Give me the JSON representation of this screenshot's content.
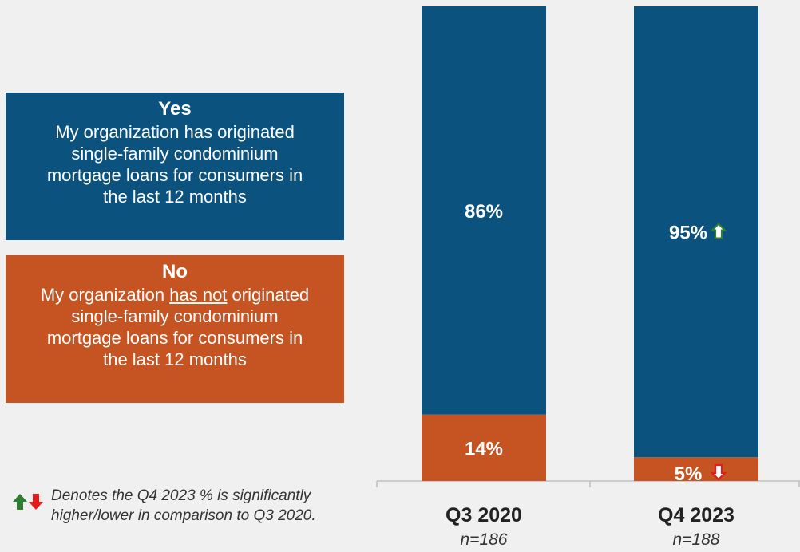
{
  "legend": {
    "yes": {
      "title": "Yes",
      "line1": "My organization has originated",
      "line2": "single-family condominium",
      "line3": "mortgage loans for consumers in",
      "line4": "the last 12 months"
    },
    "no": {
      "title": "No",
      "line1_pre": "My organization ",
      "line1_underline": "has not",
      "line1_post": " originated",
      "line2": "single-family condominium",
      "line3": "mortgage loans for consumers in",
      "line4": "the last 12 months"
    }
  },
  "note": {
    "line1": "Denotes the Q4 2023 % is significantly",
    "line2": "higher/lower in comparison to Q3 2020."
  },
  "colors": {
    "yes": "#0b527e",
    "no": "#c55422",
    "up_arrow": "#2e7d32",
    "down_arrow": "#e31b1b",
    "axis": "#bfbfbf"
  },
  "chart_data": {
    "type": "bar",
    "stacked": true,
    "categories": [
      "Q3 2020",
      "Q4 2023"
    ],
    "sample_sizes": [
      "n=186",
      "n=188"
    ],
    "series": [
      {
        "name": "Yes",
        "values": [
          86,
          95
        ],
        "labels": [
          "86%",
          "95%"
        ],
        "color": "#0b527e"
      },
      {
        "name": "No",
        "values": [
          14,
          5
        ],
        "labels": [
          "14%",
          "5%"
        ],
        "color": "#c55422"
      }
    ],
    "significance": [
      null,
      {
        "Yes": "up",
        "No": "down"
      }
    ],
    "ylim": [
      0,
      100
    ]
  }
}
